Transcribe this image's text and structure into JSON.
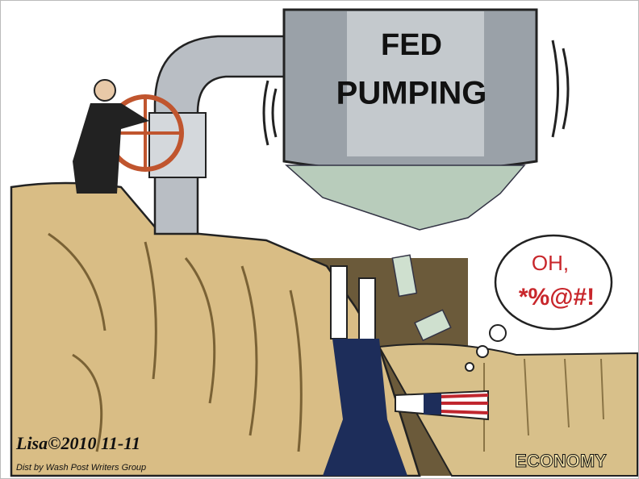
{
  "cartoon": {
    "pump_label": [
      "FED",
      "PUMPING"
    ],
    "speech_bubble": [
      "OH,",
      "*%@#!"
    ],
    "ground_label": "ECONOMY",
    "signature": "Lisa©2010 11-11",
    "distribution": "Dist by Wash Post Writers Group"
  }
}
